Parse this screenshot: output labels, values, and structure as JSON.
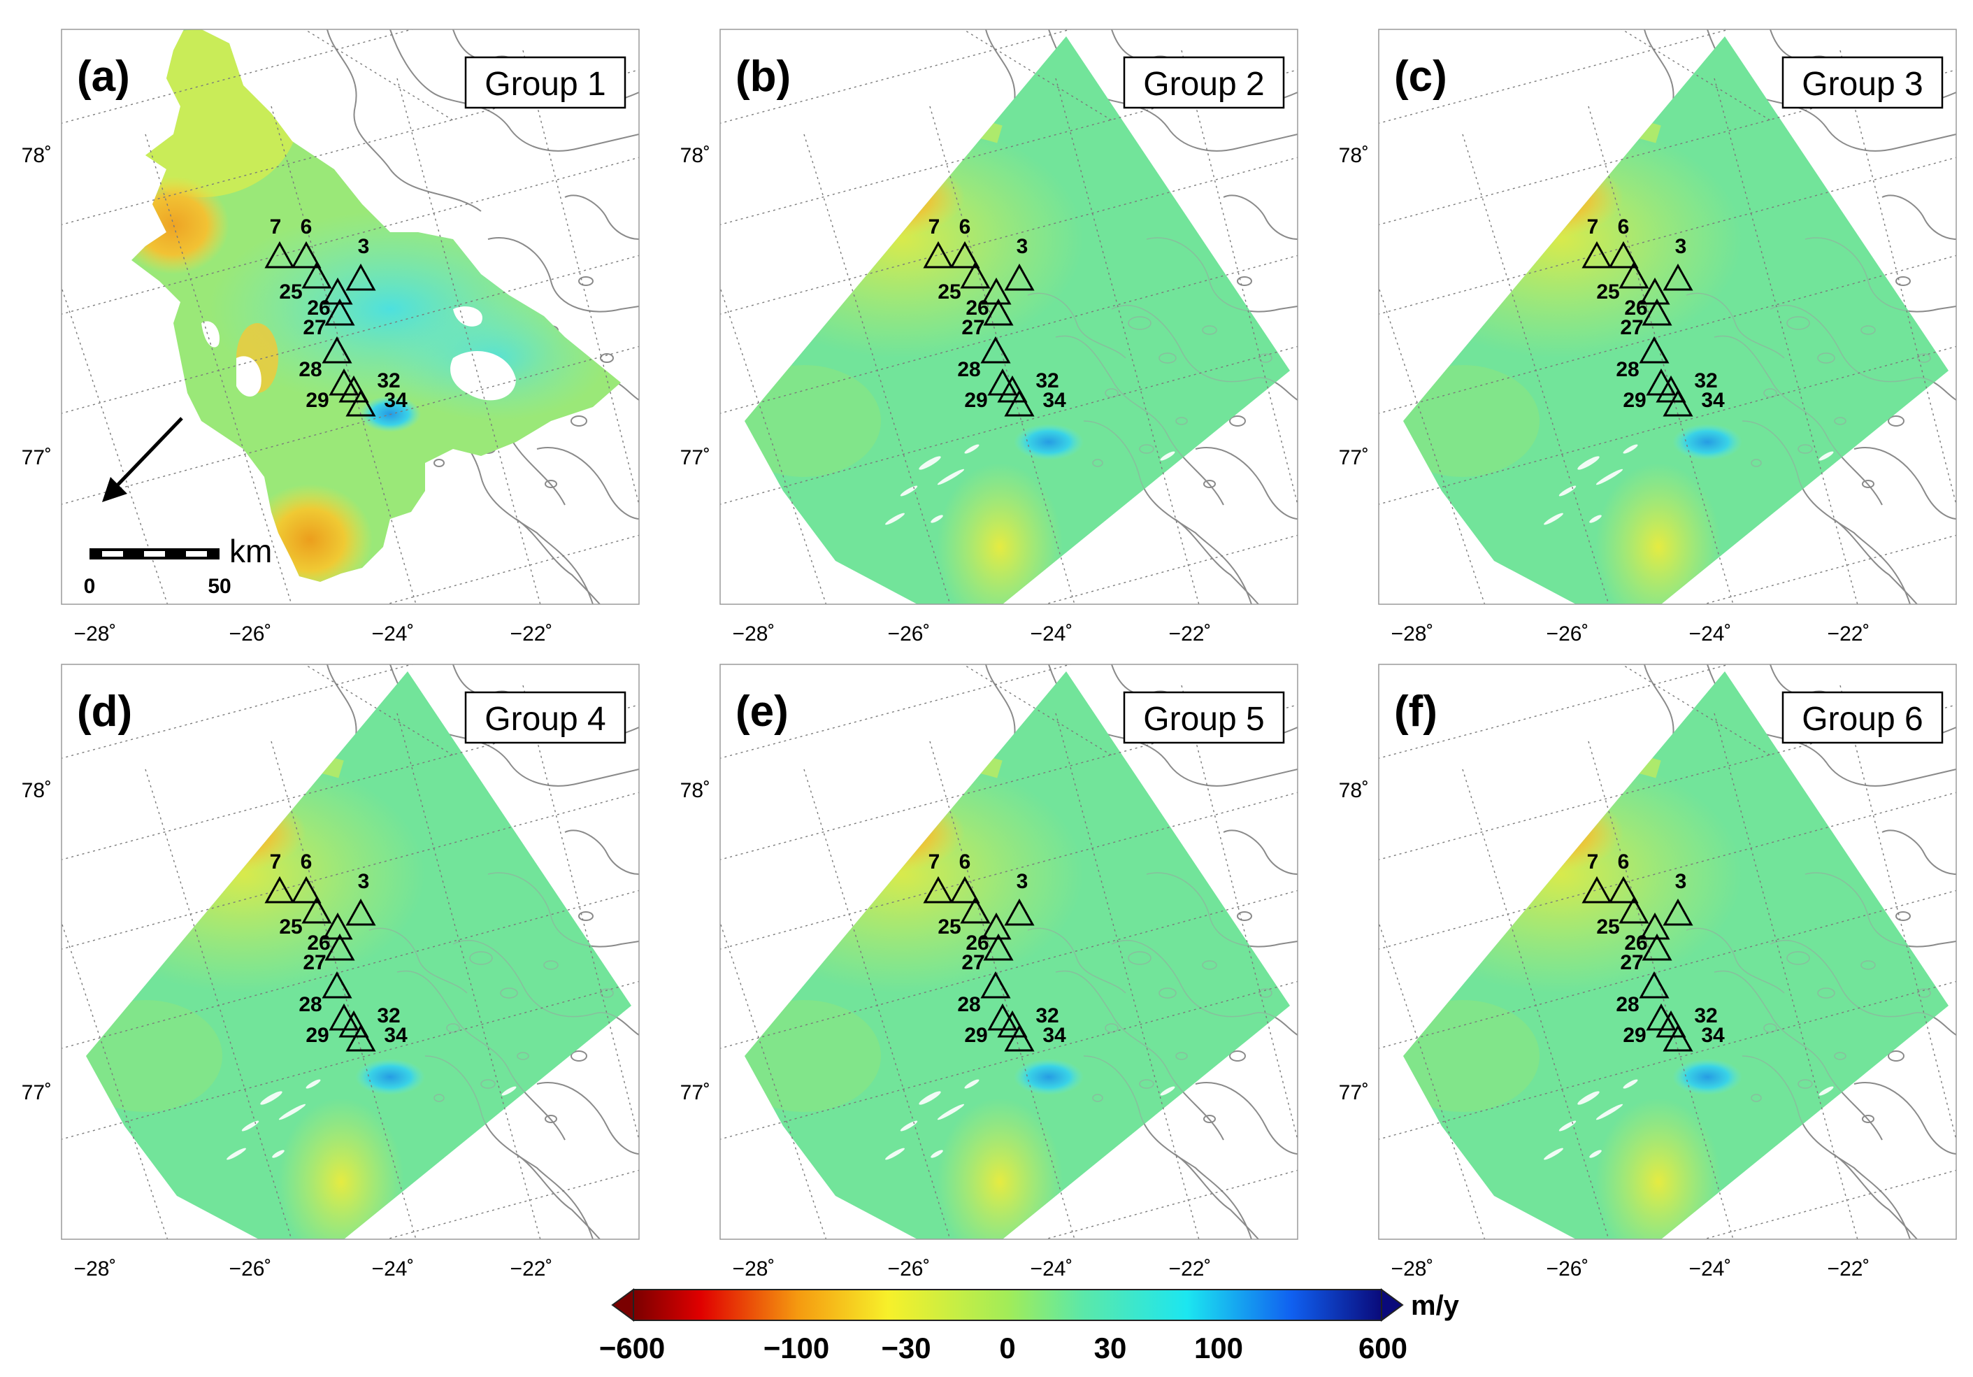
{
  "panels": [
    {
      "letter": "(a)",
      "group": "Group 1",
      "coverage": "partial"
    },
    {
      "letter": "(b)",
      "group": "Group 2",
      "coverage": "full"
    },
    {
      "letter": "(c)",
      "group": "Group 3",
      "coverage": "full"
    },
    {
      "letter": "(d)",
      "group": "Group 4",
      "coverage": "full"
    },
    {
      "letter": "(e)",
      "group": "Group 5",
      "coverage": "full"
    },
    {
      "letter": "(f)",
      "group": "Group 6",
      "coverage": "full"
    }
  ],
  "axes": {
    "lon_labels": [
      "−28˚",
      "−26˚",
      "−24˚",
      "−22˚"
    ],
    "lat_labels": [
      "78˚",
      "77˚"
    ]
  },
  "stations": [
    "7",
    "6",
    "3",
    "25",
    "26",
    "27",
    "28",
    "29",
    "32",
    "34"
  ],
  "scale_bar": {
    "unit": "km",
    "start": "0",
    "end": "50"
  },
  "colorbar": {
    "unit": "m/y",
    "ticks": [
      "−600",
      "−100",
      "−30",
      "0",
      "30",
      "100",
      "600"
    ],
    "colors": {
      "dark_red": "#7a0000",
      "red": "#e00000",
      "orange": "#f59a10",
      "yellow": "#f7f02a",
      "light_green": "#a2ec58",
      "mint": "#5ce8a8",
      "cyan": "#1ce6f0",
      "blue": "#1060f0",
      "dark_blue": "#0a0a7a"
    }
  }
}
